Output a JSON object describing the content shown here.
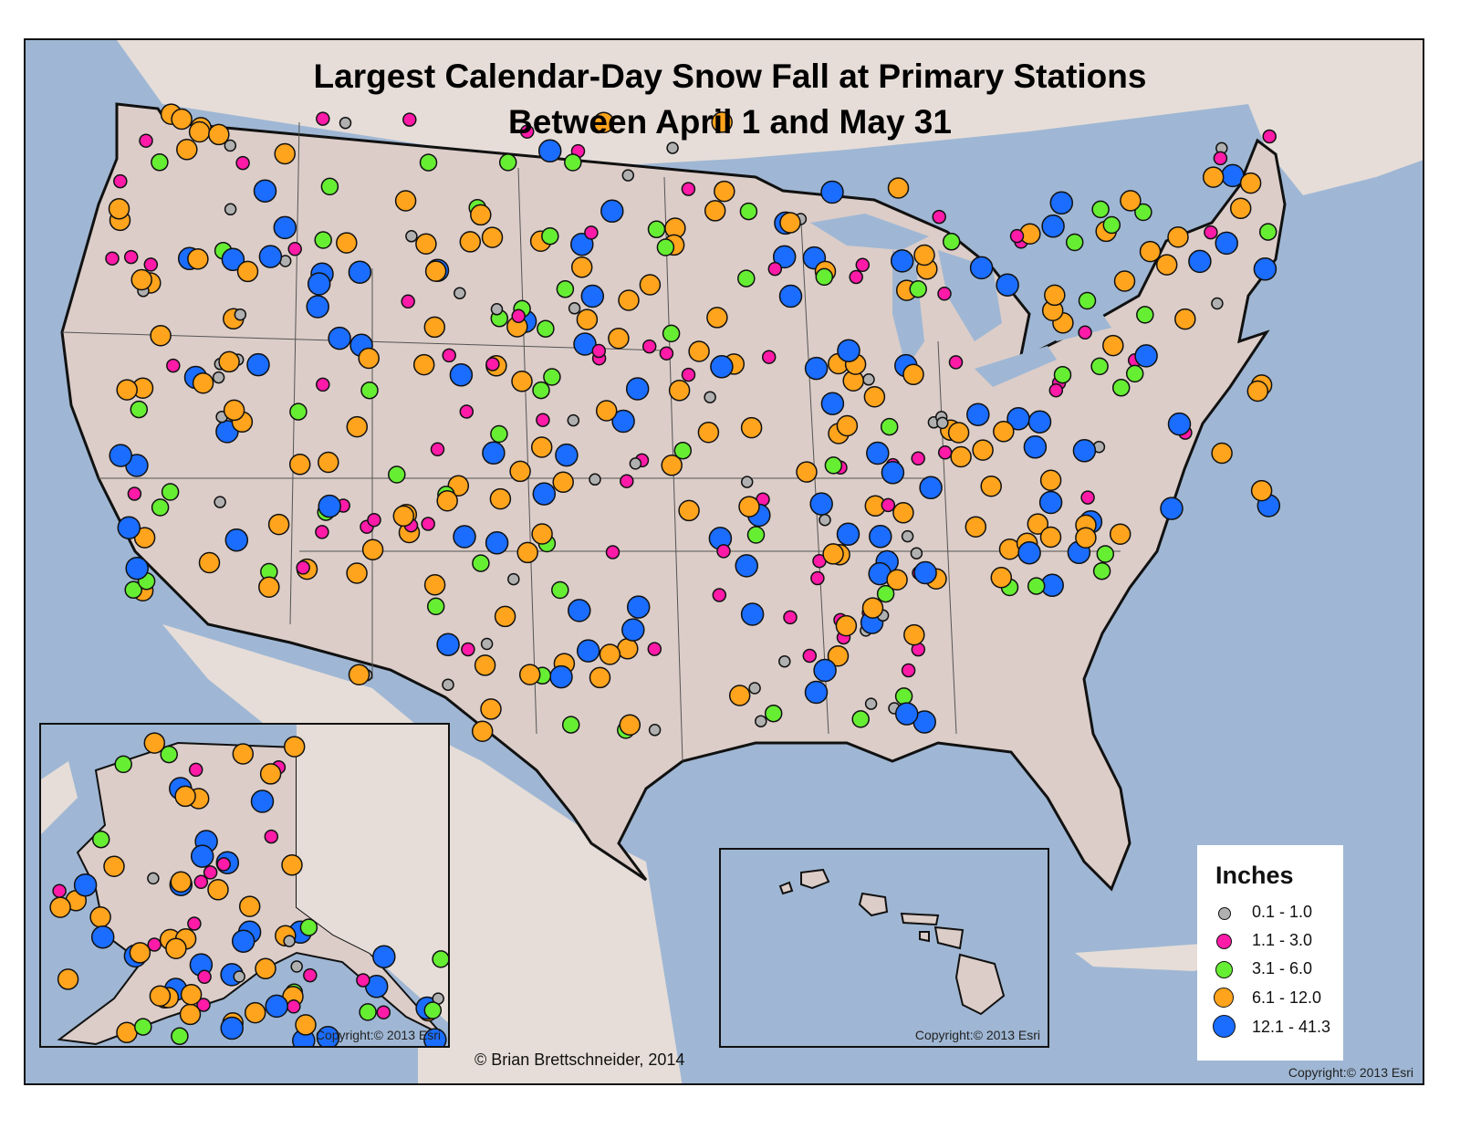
{
  "title": {
    "line1": "Largest Calendar-Day Snow Fall at Primary Stations",
    "line2": "Between April 1 and May 31"
  },
  "credit": "© Brian Brettschneider, 2014",
  "copyright": {
    "alaska_inset": "Copyright:© 2013 Esri",
    "hawaii_inset": "Copyright:© 2013 Esri",
    "main_map": "Copyright:© 2013 Esri"
  },
  "legend": {
    "title": "Inches",
    "classes": [
      {
        "label": "0.1 - 1.0",
        "color": "#b0b0b0"
      },
      {
        "label": "1.1 - 3.0",
        "color": "#ff1aa8"
      },
      {
        "label": "3.1 - 6.0",
        "color": "#66ee33"
      },
      {
        "label": "6.1 - 12.0",
        "color": "#ffa41c"
      },
      {
        "label": "12.1 - 41.3",
        "color": "#1a6dff"
      }
    ]
  },
  "colors": {
    "ocean": "#9fb7d4",
    "land": "#dccdc8",
    "foreign_land": "#e6ddd8",
    "border": "#111111"
  }
}
